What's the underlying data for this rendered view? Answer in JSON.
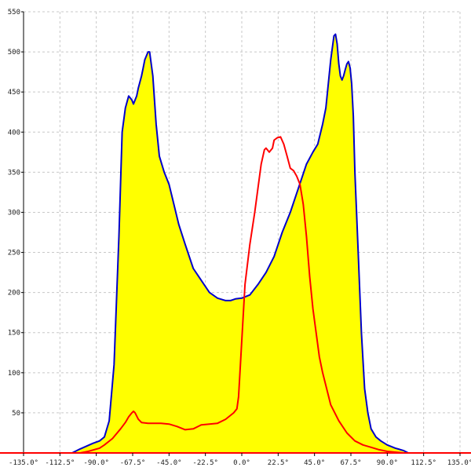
{
  "chart_data": {
    "type": "area",
    "title": "",
    "xlabel": "",
    "ylabel": "",
    "xlim": [
      -135,
      135
    ],
    "ylim": [
      0,
      550
    ],
    "grid": true,
    "x_ticks": [
      {
        "value": -135,
        "label": "-135.0°"
      },
      {
        "value": -112.5,
        "label": "-112.5°"
      },
      {
        "value": -90,
        "label": "-90.0°"
      },
      {
        "value": -67.5,
        "label": "-67.5°"
      },
      {
        "value": -45,
        "label": "-45.0°"
      },
      {
        "value": -22.5,
        "label": "-22.5°"
      },
      {
        "value": 0,
        "label": "0.0°"
      },
      {
        "value": 22.5,
        "label": "22.5°"
      },
      {
        "value": 45,
        "label": "45.0°"
      },
      {
        "value": 67.5,
        "label": "67.5°"
      },
      {
        "value": 90,
        "label": "90.0°"
      },
      {
        "value": 112.5,
        "label": "112.5°"
      },
      {
        "value": 135,
        "label": "135.0°"
      }
    ],
    "y_ticks": [
      {
        "value": 50,
        "label": "50"
      },
      {
        "value": 100,
        "label": "100"
      },
      {
        "value": 150,
        "label": "150"
      },
      {
        "value": 200,
        "label": "200"
      },
      {
        "value": 250,
        "label": "250"
      },
      {
        "value": 300,
        "label": "300"
      },
      {
        "value": 350,
        "label": "350"
      },
      {
        "value": 400,
        "label": "400"
      },
      {
        "value": 450,
        "label": "450"
      },
      {
        "value": 500,
        "label": "500"
      },
      {
        "value": 550,
        "label": "550"
      }
    ],
    "series": [
      {
        "color": "#0000cc",
        "fill": "#ffff00",
        "x": [
          -135,
          -105,
          -100,
          -92,
          -88,
          -85,
          -82,
          -79,
          -76,
          -74,
          -72,
          -70,
          -68,
          -67,
          -65,
          -64,
          -62,
          -61,
          -60,
          -58,
          -57,
          -55,
          -53,
          -51,
          -48,
          -45,
          -42,
          -39,
          -35,
          -30,
          -25,
          -20,
          -15,
          -10,
          -7,
          -4,
          0,
          5,
          10,
          15,
          20,
          25,
          30,
          35,
          40,
          44,
          47,
          50,
          52,
          55,
          57,
          58,
          59,
          60,
          61,
          62,
          63,
          64,
          65,
          66,
          67,
          68,
          69,
          70,
          72,
          74,
          76,
          78,
          80,
          83,
          86,
          90,
          95,
          100,
          103,
          135
        ],
        "y": [
          0,
          0,
          5,
          12,
          15,
          20,
          40,
          110,
          270,
          400,
          430,
          445,
          440,
          435,
          445,
          455,
          470,
          480,
          490,
          500,
          500,
          470,
          410,
          370,
          350,
          335,
          310,
          285,
          260,
          230,
          215,
          200,
          193,
          190,
          190,
          192,
          193,
          197,
          210,
          225,
          245,
          275,
          300,
          330,
          360,
          375,
          385,
          410,
          430,
          490,
          520,
          522,
          510,
          485,
          470,
          465,
          470,
          478,
          485,
          488,
          480,
          460,
          420,
          350,
          250,
          150,
          80,
          50,
          30,
          20,
          15,
          10,
          6,
          3,
          0,
          0
        ]
      },
      {
        "color": "#ff0000",
        "fill": "none",
        "x": [
          -135,
          -100,
          -95,
          -88,
          -85,
          -80,
          -75,
          -72,
          -70,
          -68,
          -67,
          -66,
          -64,
          -62,
          -58,
          -54,
          -50,
          -45,
          -40,
          -35,
          -30,
          -25,
          -20,
          -15,
          -10,
          -5,
          -3,
          -2,
          0,
          2,
          5,
          8,
          10,
          12,
          14,
          15,
          17,
          19,
          20,
          22,
          24,
          26,
          28,
          30,
          32,
          34,
          36,
          38,
          40,
          42,
          44,
          46,
          48,
          50,
          55,
          60,
          65,
          70,
          75,
          80,
          85,
          90,
          95,
          100,
          135
        ],
        "y": [
          0,
          0,
          2,
          6,
          10,
          18,
          30,
          38,
          45,
          50,
          52,
          50,
          42,
          38,
          37,
          37,
          37,
          36,
          33,
          29,
          30,
          35,
          36,
          37,
          42,
          50,
          55,
          70,
          140,
          210,
          260,
          300,
          330,
          360,
          378,
          380,
          375,
          380,
          390,
          393,
          394,
          385,
          370,
          355,
          352,
          345,
          335,
          310,
          270,
          220,
          180,
          150,
          120,
          100,
          60,
          40,
          25,
          15,
          10,
          7,
          4,
          2,
          1,
          0,
          0
        ]
      }
    ]
  }
}
